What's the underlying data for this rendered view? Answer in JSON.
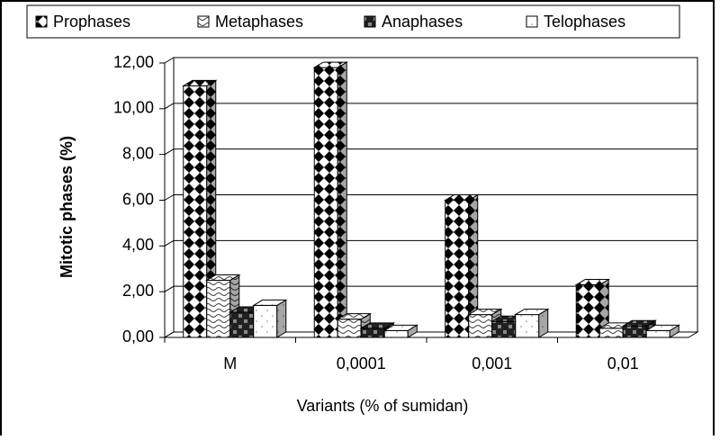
{
  "chart_data": {
    "type": "bar3d",
    "x_label": "Variants (% of sumidan)",
    "y_label": "Mitotic phases (%)",
    "categories": [
      "M",
      "0,0001",
      "0,001",
      "0,01"
    ],
    "series": [
      {
        "name": "Prophases",
        "color": "#000000",
        "values": [
          11.0,
          11.8,
          6.0,
          2.3
        ]
      },
      {
        "name": "Metaphases",
        "color": "#404040",
        "values": [
          2.5,
          0.8,
          1.0,
          0.4
        ]
      },
      {
        "name": "Anaphases",
        "color": "#202020",
        "values": [
          1.1,
          0.4,
          0.7,
          0.5
        ]
      },
      {
        "name": "Telophases",
        "color": "#808080",
        "values": [
          1.4,
          0.3,
          1.0,
          0.3
        ]
      }
    ],
    "ylim": [
      0,
      12
    ],
    "yticks": [
      {
        "value": 0,
        "label": "0,00"
      },
      {
        "value": 2,
        "label": "2,00"
      },
      {
        "value": 4,
        "label": "4,00"
      },
      {
        "value": 6,
        "label": "6,00"
      },
      {
        "value": 8,
        "label": "8,00"
      },
      {
        "value": 10,
        "label": "10,00"
      },
      {
        "value": 12,
        "label": "12,00"
      }
    ],
    "grid": true,
    "legend": "top"
  }
}
